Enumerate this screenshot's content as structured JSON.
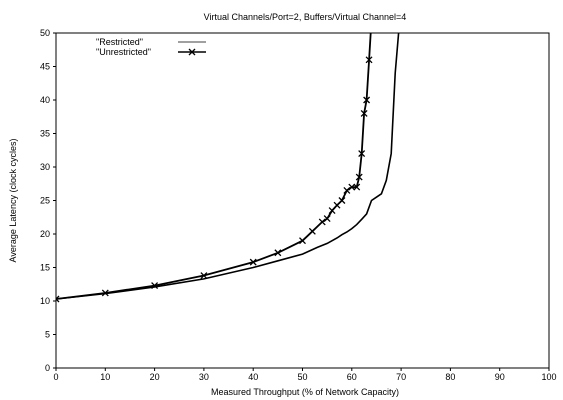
{
  "chart_data": {
    "type": "line",
    "title": "Virtual Channels/Port=2, Buffers/Virtual Channel=4",
    "xlabel": "Measured Throughput (% of Network Capacity)",
    "ylabel": "Average Latency (clock cycles)",
    "xlim": [
      0,
      100
    ],
    "ylim": [
      0,
      50
    ],
    "xticks": [
      0,
      10,
      20,
      30,
      40,
      50,
      60,
      70,
      80,
      90,
      100
    ],
    "yticks": [
      0,
      5,
      10,
      15,
      20,
      25,
      30,
      35,
      40,
      45,
      50
    ],
    "grid": false,
    "legend_position": "top-left",
    "series": [
      {
        "name": "\"Restricted\"",
        "color": "#000000",
        "marker": "none",
        "x": [
          0,
          10,
          20,
          30,
          40,
          45,
          50,
          53,
          55,
          56,
          57,
          58,
          59,
          60,
          61,
          62,
          63,
          64,
          65,
          66,
          67,
          68,
          68.8,
          69.5,
          70
        ],
        "y": [
          10.3,
          11.1,
          12.1,
          13.3,
          15.0,
          16.0,
          17.0,
          18.0,
          18.6,
          19.0,
          19.4,
          19.9,
          20.3,
          20.8,
          21.4,
          22.2,
          23.0,
          25.0,
          25.5,
          26.0,
          28.0,
          32.0,
          44.0,
          50.0,
          52.0
        ]
      },
      {
        "name": "\"Unrestricted\"",
        "color": "#000000",
        "marker": "x",
        "x": [
          0,
          10,
          20,
          30,
          40,
          45,
          50,
          52,
          54,
          55,
          56,
          57,
          58,
          59,
          60,
          61,
          61.5,
          62,
          62.5,
          63,
          63.5,
          64
        ],
        "y": [
          10.3,
          11.2,
          12.3,
          13.8,
          15.8,
          17.2,
          19.0,
          20.4,
          21.8,
          22.3,
          23.5,
          24.3,
          25.0,
          26.5,
          27.0,
          27.0,
          28.5,
          32.0,
          38.0,
          40.0,
          46.0,
          52.0
        ]
      }
    ]
  }
}
